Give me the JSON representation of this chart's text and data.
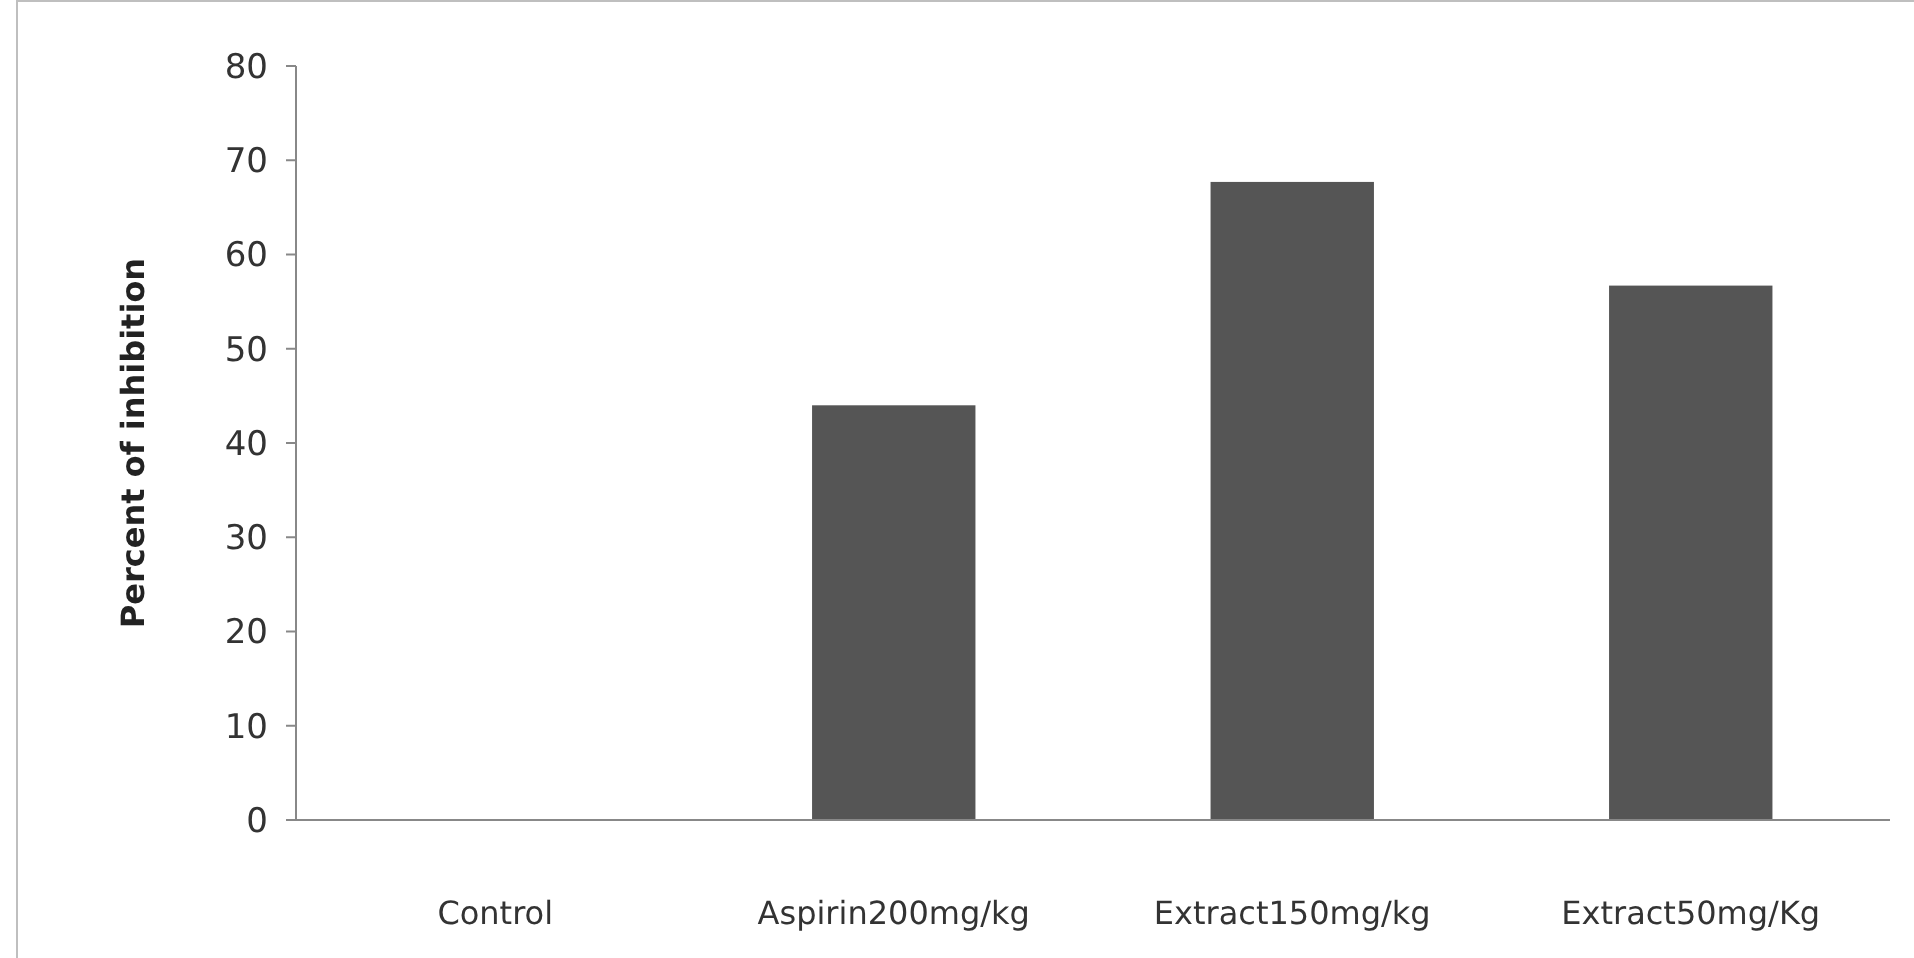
{
  "chart_data": {
    "type": "bar",
    "ylabel": "Percent  of inhibition",
    "categories": [
      "Control",
      "Aspirin200mg/kg",
      "Extract150mg/kg",
      "Extract50mg/Kg"
    ],
    "values": [
      0,
      44,
      67.7,
      56.7
    ],
    "color": "#555555",
    "ylim": [
      0,
      80
    ],
    "yticks": [
      0,
      10,
      20,
      30,
      40,
      50,
      60,
      70,
      80
    ],
    "grid": false
  }
}
